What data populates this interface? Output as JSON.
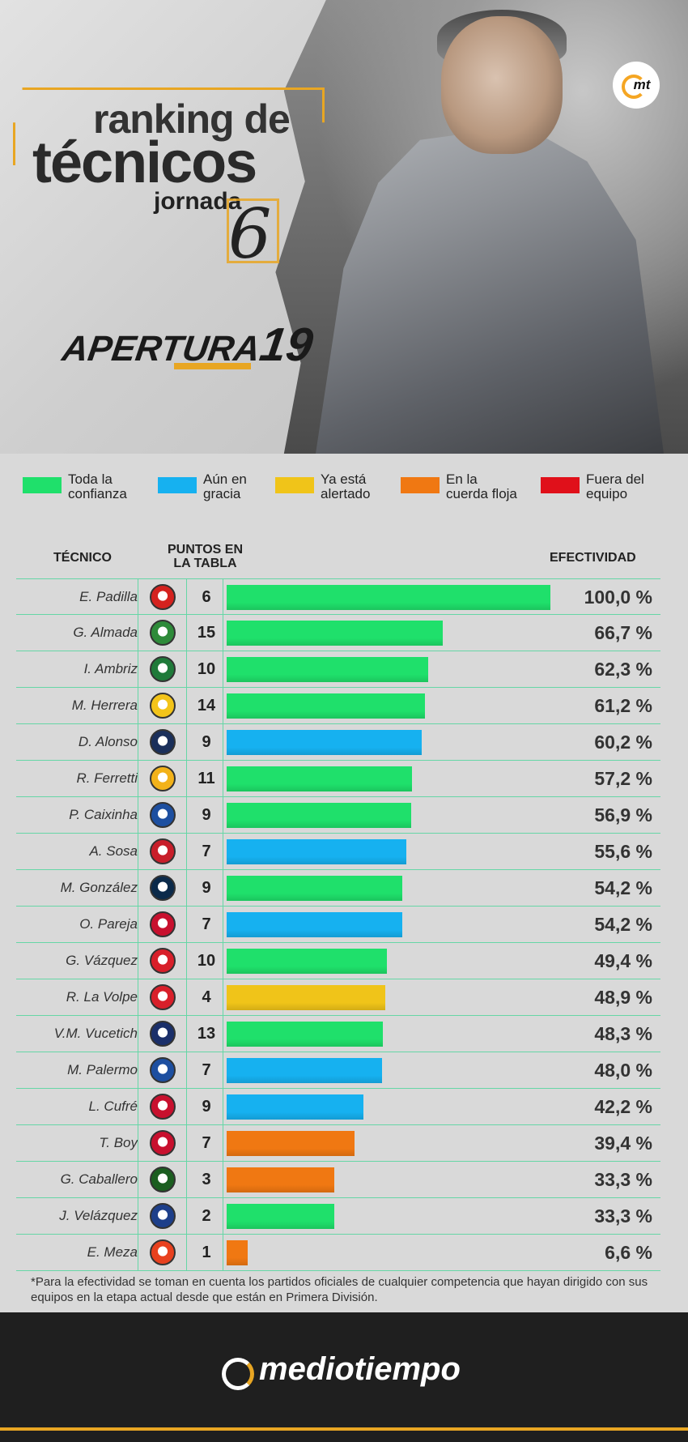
{
  "header": {
    "title_line1": "ranking de",
    "title_line2": "técnicos",
    "jornada_label": "jornada",
    "jornada_number": "6",
    "tournament": "APERTURA",
    "tournament_year": "19",
    "badge": "mt"
  },
  "legend": [
    {
      "label": "Toda la\nconfianza",
      "color": "#1fe06b"
    },
    {
      "label": "Aún en\ngracia",
      "color": "#16b1f0"
    },
    {
      "label": "Ya está\nalertado",
      "color": "#f0c419"
    },
    {
      "label": "En la\ncuerda floja",
      "color": "#f07812"
    },
    {
      "label": "Fuera del\nequipo",
      "color": "#e0101a"
    }
  ],
  "columns": {
    "coach": "TÉCNICO",
    "points": "PUNTOS EN\nLA TABLA",
    "effectiveness": "EFECTIVIDAD"
  },
  "chart_data": {
    "type": "bar",
    "orientation": "horizontal",
    "ylim": [
      0,
      100
    ],
    "categories": [
      "E. Padilla",
      "G. Almada",
      "I. Ambriz",
      "M. Herrera",
      "D. Alonso",
      "R. Ferretti",
      "P. Caixinha",
      "A. Sosa",
      "M. González",
      "O. Pareja",
      "G. Vázquez",
      "R. La Volpe",
      "V.M. Vucetich",
      "M. Palermo",
      "L. Cufré",
      "T. Boy",
      "G. Caballero",
      "J. Velázquez",
      "E. Meza"
    ],
    "points": [
      6,
      15,
      10,
      14,
      9,
      11,
      9,
      7,
      9,
      7,
      10,
      4,
      13,
      7,
      9,
      7,
      3,
      2,
      1
    ],
    "values": [
      100.0,
      66.7,
      62.3,
      61.2,
      60.2,
      57.2,
      56.9,
      55.6,
      54.2,
      54.2,
      49.4,
      48.9,
      48.3,
      48.0,
      42.2,
      39.4,
      33.3,
      33.3,
      6.6
    ],
    "value_labels": [
      "100,0 %",
      "66,7 %",
      "62,3 %",
      "61,2 %",
      "60,2 %",
      "57,2 %",
      "56,9 %",
      "55,6 %",
      "54,2 %",
      "54,2 %",
      "49,4 %",
      "48,9 %",
      "48,3 %",
      "48,0 %",
      "42,2 %",
      "39,4 %",
      "33,3 %",
      "33,3 %",
      "6,6 %"
    ],
    "status_colors": [
      "#1fe06b",
      "#1fe06b",
      "#1fe06b",
      "#1fe06b",
      "#16b1f0",
      "#1fe06b",
      "#1fe06b",
      "#16b1f0",
      "#1fe06b",
      "#16b1f0",
      "#1fe06b",
      "#f0c419",
      "#1fe06b",
      "#16b1f0",
      "#16b1f0",
      "#f07812",
      "#f07812",
      "#1fe06b",
      "#f07812"
    ],
    "team_colors": [
      "#d4221f",
      "#2e8b3a",
      "#1f7a3a",
      "#f3c419",
      "#1a2f5a",
      "#f2b21a",
      "#1d4fa0",
      "#c81e2a",
      "#0b2a4a",
      "#c8102e",
      "#d81f2a",
      "#d81f2a",
      "#1a2f6a",
      "#1d4fa0",
      "#c8102e",
      "#c8102e",
      "#1b5e20",
      "#1d3f8a",
      "#e8411f"
    ]
  },
  "footnote": "*Para la efectividad se toman en cuenta los partidos oficiales de cualquier competencia que hayan dirigido con sus equipos en la etapa actual desde que están en Primera División.",
  "footer": {
    "brand": "mediotiempo"
  }
}
